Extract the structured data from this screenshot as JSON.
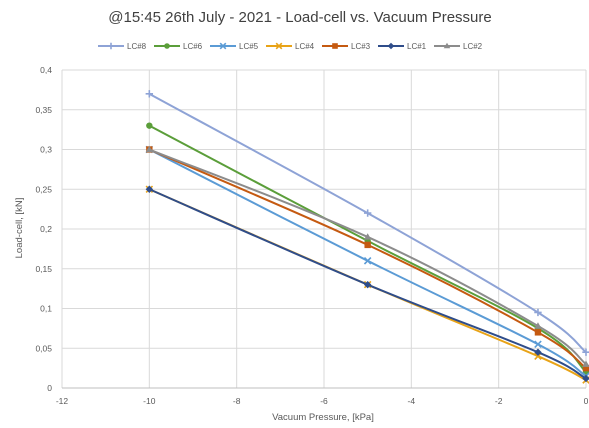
{
  "chart_data": {
    "type": "line",
    "title": "@15:45 26th July - 2021 - Load-cell vs. Vacuum Pressure",
    "xlabel": "Vacuum Pressure, [kPa]",
    "ylabel": "Load-cell, [kN]",
    "xlim": [
      -12,
      0
    ],
    "ylim": [
      0,
      0.4
    ],
    "x_ticks": [
      "-12",
      "-10",
      "-8",
      "-6",
      "-4",
      "-2",
      "0"
    ],
    "y_ticks": [
      "0",
      "0,05",
      "0,1",
      "0,15",
      "0,2",
      "0,25",
      "0,3",
      "0,35",
      "0,4"
    ],
    "grid": true,
    "legend_position": "top",
    "x": [
      -10,
      -5,
      -1.1,
      0
    ],
    "series": [
      {
        "name": "LC#8",
        "color": "#8ea3d6",
        "marker": "plus",
        "values": [
          0.37,
          0.22,
          0.095,
          0.045
        ]
      },
      {
        "name": "LC#6",
        "color": "#5b9e3a",
        "marker": "circle",
        "values": [
          0.33,
          0.185,
          0.075,
          0.02
        ]
      },
      {
        "name": "LC#5",
        "color": "#5b9bd5",
        "marker": "x",
        "values": [
          0.3,
          0.16,
          0.055,
          0.015
        ]
      },
      {
        "name": "LC#4",
        "color": "#e8a317",
        "marker": "x",
        "values": [
          0.25,
          0.13,
          0.04,
          0.01
        ]
      },
      {
        "name": "LC#3",
        "color": "#c55a11",
        "marker": "square",
        "values": [
          0.3,
          0.18,
          0.07,
          0.025
        ]
      },
      {
        "name": "LC#1",
        "color": "#2f4d8a",
        "marker": "diamond",
        "values": [
          0.25,
          0.13,
          0.045,
          0.012
        ]
      },
      {
        "name": "LC#2",
        "color": "#8c8c8c",
        "marker": "triangle",
        "values": [
          0.3,
          0.19,
          0.078,
          0.03
        ]
      }
    ]
  }
}
